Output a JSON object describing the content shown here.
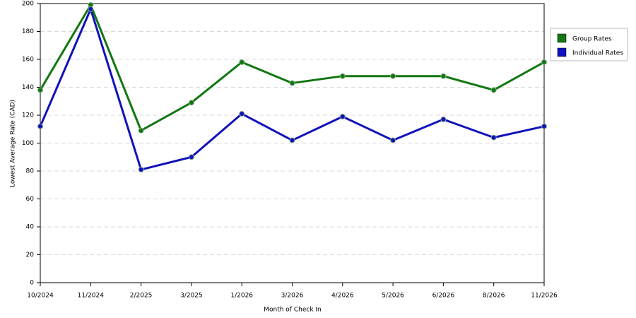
{
  "chart_data": {
    "type": "line",
    "x_label": "Month of Check In",
    "y_label": "Lowest Average Rate (CAD)",
    "categories": [
      "10/2024",
      "11/2024",
      "2/2025",
      "3/2025",
      "1/2026",
      "3/2026",
      "4/2026",
      "5/2026",
      "6/2026",
      "8/2026",
      "11/2026"
    ],
    "series": [
      {
        "name": "Group Rates",
        "color": "#117711",
        "values": [
          138,
          199,
          109,
          129,
          158,
          143,
          148,
          148,
          148,
          138,
          158
        ]
      },
      {
        "name": "Individual Rates",
        "color": "#1111bb",
        "values": [
          112,
          196,
          81,
          90,
          121,
          102,
          119,
          102,
          117,
          104,
          112
        ]
      }
    ],
    "ylim": [
      0,
      200
    ],
    "yticks": [
      0,
      20,
      40,
      60,
      80,
      100,
      120,
      140,
      160,
      180,
      200
    ],
    "grid": true,
    "legend": "right"
  }
}
